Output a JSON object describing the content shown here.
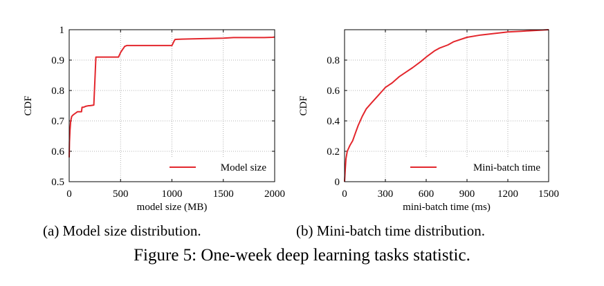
{
  "chart_data": [
    {
      "type": "line",
      "xlabel": "model size (MB)",
      "ylabel": "CDF",
      "xlim": [
        0,
        2000
      ],
      "ylim": [
        0.5,
        1
      ],
      "xticks": [
        "0",
        "500",
        "1000",
        "1500",
        "2000"
      ],
      "yticks": [
        "0.5",
        "0.6",
        "0.7",
        "0.8",
        "0.9",
        "1"
      ],
      "grid": true,
      "legend_position": "bottom-right",
      "color": "#e3262c",
      "series": [
        {
          "name": "Model size",
          "x": [
            0,
            3,
            8,
            15,
            25,
            40,
            60,
            80,
            100,
            120,
            125,
            140,
            160,
            190,
            200,
            240,
            250,
            260,
            280,
            300,
            400,
            480,
            500,
            510,
            520,
            530,
            540,
            560,
            600,
            800,
            1000,
            1010,
            1020,
            1030,
            1100,
            1200,
            1500,
            1600,
            1900,
            1980,
            2000
          ],
          "y": [
            0.58,
            0.63,
            0.67,
            0.7,
            0.715,
            0.72,
            0.725,
            0.73,
            0.73,
            0.73,
            0.745,
            0.745,
            0.748,
            0.75,
            0.75,
            0.752,
            0.83,
            0.91,
            0.91,
            0.91,
            0.91,
            0.91,
            0.925,
            0.93,
            0.935,
            0.94,
            0.945,
            0.948,
            0.948,
            0.948,
            0.948,
            0.955,
            0.962,
            0.968,
            0.969,
            0.97,
            0.972,
            0.974,
            0.974,
            0.975,
            0.976
          ]
        }
      ]
    },
    {
      "type": "line",
      "xlabel": "mini-batch time (ms)",
      "ylabel": "CDF",
      "xlim": [
        0,
        1500
      ],
      "ylim": [
        0,
        1
      ],
      "xticks": [
        "0",
        "300",
        "600",
        "900",
        "1200",
        "1500"
      ],
      "yticks": [
        "0",
        "0.2",
        "0.4",
        "0.6",
        "0.8"
      ],
      "grid": true,
      "legend_position": "bottom-right",
      "color": "#e3262c",
      "series": [
        {
          "name": "Mini-batch time",
          "x": [
            0,
            5,
            10,
            20,
            40,
            60,
            80,
            100,
            130,
            160,
            200,
            240,
            280,
            300,
            350,
            400,
            450,
            500,
            560,
            600,
            660,
            700,
            760,
            800,
            900,
            1000,
            1100,
            1200,
            1300,
            1400,
            1500
          ],
          "y": [
            0,
            0.08,
            0.15,
            0.2,
            0.24,
            0.27,
            0.32,
            0.37,
            0.43,
            0.48,
            0.52,
            0.56,
            0.6,
            0.62,
            0.65,
            0.69,
            0.72,
            0.75,
            0.79,
            0.82,
            0.86,
            0.88,
            0.9,
            0.92,
            0.95,
            0.965,
            0.975,
            0.985,
            0.99,
            0.995,
            1.0
          ]
        }
      ]
    }
  ],
  "captions": {
    "a": "(a) Model size distribution.",
    "b": "(b) Mini-batch time distribution."
  },
  "figure_title": "Figure 5: One-week deep learning tasks statistic."
}
